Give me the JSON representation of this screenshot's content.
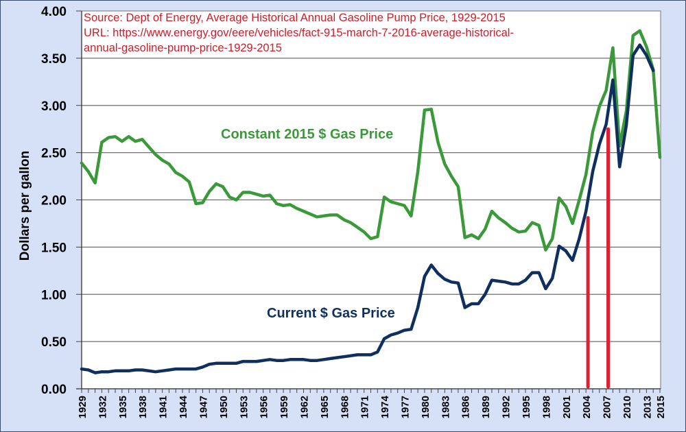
{
  "chart_data": {
    "type": "line",
    "title": "",
    "xlabel": "",
    "ylabel": "Dollars per gallon",
    "ylim": [
      0,
      4
    ],
    "xlim": [
      1929,
      2015
    ],
    "grid": true,
    "y_ticks": [
      "0.00",
      "0.50",
      "1.00",
      "1.50",
      "2.00",
      "2.50",
      "3.00",
      "3.50",
      "4.00"
    ],
    "y_tick_values": [
      0,
      0.5,
      1.0,
      1.5,
      2.0,
      2.5,
      3.0,
      3.5,
      4.0
    ],
    "x_tick_labels": [
      "1929",
      "1932",
      "1935",
      "1938",
      "1941",
      "1944",
      "1947",
      "1950",
      "1953",
      "1956",
      "1959",
      "1962",
      "1965",
      "1968",
      "1971",
      "1974",
      "1977",
      "1980",
      "1983",
      "1986",
      "1989",
      "1992",
      "1995",
      "1998",
      "2001",
      "2004",
      "2007",
      "2010",
      "2013",
      "2015"
    ],
    "source_note": [
      "Source: Dept of Energy, Average Historical Annual Gasoline Pump Price, 1929-2015",
      "URL: https://www.energy.gov/eere/vehicles/fact-915-march-7-2016-average-historical-",
      "annual-gasoline-pump-price-1929-2015"
    ],
    "colors": {
      "constant": "#3a9a3a",
      "current": "#0f2f5f",
      "marker": "#e02030",
      "note": "#c8202c"
    },
    "x": [
      1929,
      1930,
      1931,
      1932,
      1933,
      1934,
      1935,
      1936,
      1937,
      1938,
      1939,
      1940,
      1941,
      1942,
      1943,
      1944,
      1945,
      1946,
      1947,
      1948,
      1949,
      1950,
      1951,
      1952,
      1953,
      1954,
      1955,
      1956,
      1957,
      1958,
      1959,
      1960,
      1961,
      1962,
      1963,
      1964,
      1965,
      1966,
      1967,
      1968,
      1969,
      1970,
      1971,
      1972,
      1973,
      1974,
      1975,
      1976,
      1977,
      1978,
      1979,
      1980,
      1981,
      1982,
      1983,
      1984,
      1985,
      1986,
      1987,
      1988,
      1989,
      1990,
      1991,
      1992,
      1993,
      1994,
      1995,
      1996,
      1997,
      1998,
      1999,
      2000,
      2001,
      2002,
      2003,
      2004,
      2005,
      2006,
      2007,
      2008,
      2009,
      2010,
      2011,
      2012,
      2013,
      2014,
      2015
    ],
    "series": [
      {
        "name": "Constant 2015 $ Gas Price",
        "label": "Constant 2015 $ Gas Price",
        "values": [
          2.39,
          2.3,
          2.18,
          2.61,
          2.66,
          2.67,
          2.62,
          2.67,
          2.62,
          2.64,
          2.56,
          2.48,
          2.42,
          2.38,
          2.29,
          2.25,
          2.19,
          1.96,
          1.97,
          2.09,
          2.17,
          2.14,
          2.03,
          2.0,
          2.08,
          2.08,
          2.06,
          2.04,
          2.05,
          1.96,
          1.94,
          1.95,
          1.91,
          1.88,
          1.85,
          1.82,
          1.83,
          1.84,
          1.84,
          1.79,
          1.76,
          1.71,
          1.66,
          1.59,
          1.61,
          2.03,
          1.98,
          1.96,
          1.94,
          1.83,
          2.3,
          2.95,
          2.96,
          2.61,
          2.38,
          2.25,
          2.14,
          1.6,
          1.63,
          1.59,
          1.69,
          1.88,
          1.81,
          1.76,
          1.7,
          1.66,
          1.67,
          1.76,
          1.73,
          1.47,
          1.59,
          2.02,
          1.93,
          1.75,
          2.0,
          2.27,
          2.72,
          2.99,
          3.16,
          3.61,
          2.57,
          2.94,
          3.74,
          3.79,
          3.62,
          3.38,
          2.45
        ]
      },
      {
        "name": "Current $ Gas Price",
        "label": "Current $ Gas Price",
        "values": [
          0.21,
          0.2,
          0.17,
          0.18,
          0.18,
          0.19,
          0.19,
          0.19,
          0.2,
          0.2,
          0.19,
          0.18,
          0.19,
          0.2,
          0.21,
          0.21,
          0.21,
          0.21,
          0.23,
          0.26,
          0.27,
          0.27,
          0.27,
          0.27,
          0.29,
          0.29,
          0.29,
          0.3,
          0.31,
          0.3,
          0.3,
          0.31,
          0.31,
          0.31,
          0.3,
          0.3,
          0.31,
          0.32,
          0.33,
          0.34,
          0.35,
          0.36,
          0.36,
          0.36,
          0.39,
          0.53,
          0.57,
          0.59,
          0.62,
          0.63,
          0.86,
          1.19,
          1.31,
          1.22,
          1.16,
          1.13,
          1.12,
          0.86,
          0.9,
          0.9,
          1.0,
          1.15,
          1.14,
          1.13,
          1.11,
          1.11,
          1.15,
          1.23,
          1.23,
          1.06,
          1.17,
          1.51,
          1.46,
          1.36,
          1.59,
          1.88,
          2.3,
          2.59,
          2.8,
          3.27,
          2.35,
          2.79,
          3.53,
          3.64,
          3.53,
          3.37,
          null
        ]
      }
    ],
    "annotations": [
      {
        "type": "vertical-bar",
        "x": 2004.3,
        "y_top": 1.81
      },
      {
        "type": "vertical-bar",
        "x": 2007.3,
        "y_top": 2.75
      }
    ]
  }
}
